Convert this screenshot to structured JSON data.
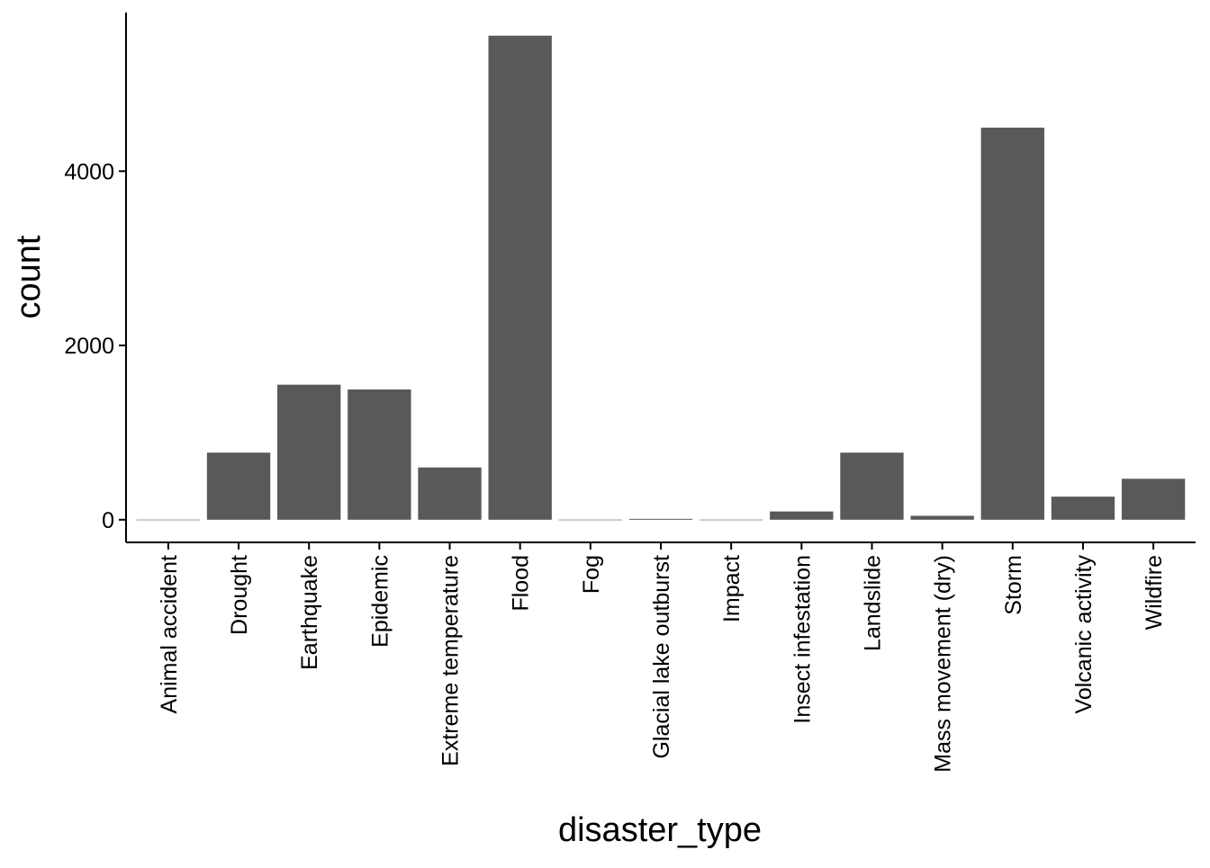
{
  "chart_data": {
    "type": "bar",
    "title": "",
    "xlabel": "disaster_type",
    "ylabel": "count",
    "categories": [
      "Animal accident",
      "Drought",
      "Earthquake",
      "Epidemic",
      "Extreme temperature",
      "Flood",
      "Fog",
      "Glacial lake outburst",
      "Impact",
      "Insect infestation",
      "Landslide",
      "Mass movement (dry)",
      "Storm",
      "Volcanic activity",
      "Wildfire"
    ],
    "values": [
      1,
      770,
      1550,
      1495,
      600,
      5555,
      1,
      10,
      1,
      95,
      770,
      45,
      4500,
      265,
      470
    ],
    "ylim": [
      -260,
      5820
    ],
    "yticks": [
      0,
      2000,
      4000
    ],
    "ytick_labels": [
      "0",
      "2000",
      "4000"
    ],
    "grid": false,
    "legend": "none",
    "bar_color": "#595959",
    "axis_color": "#000000"
  }
}
